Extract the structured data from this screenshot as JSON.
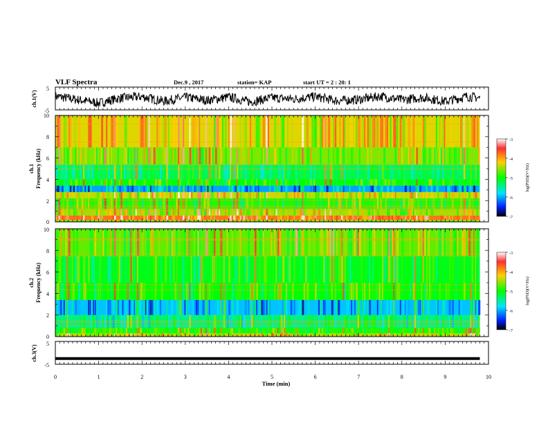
{
  "header": {
    "title": "VLF Spectra",
    "date": "Dec.9 , 2017",
    "station": "station= KAP",
    "start": "start UT =  2 : 20: 1"
  },
  "chart_data": [
    {
      "type": "line",
      "panel": "ch1-waveform",
      "ylabel": "ch.1(V)",
      "yticks": [
        "5",
        "-5"
      ],
      "ylim": [
        -5,
        5
      ],
      "xlim": [
        0,
        9.8
      ],
      "line_color": "#000000",
      "series": [
        {
          "x": [
            0,
            0.5,
            1,
            1.5,
            2,
            2.5,
            3,
            3.5,
            4,
            4.5,
            5,
            5.5,
            6,
            6.5,
            7,
            7.5,
            8,
            8.5,
            9,
            9.5,
            9.8
          ],
          "values": [
            1.0,
            -0.5,
            -2.0,
            0.2,
            0.8,
            -1.2,
            0.5,
            -0.8,
            0.6,
            -1.5,
            0.3,
            -0.2,
            0.8,
            -1.0,
            -0.5,
            1.0,
            -0.6,
            0.4,
            -1.3,
            0.9,
            0.2
          ]
        }
      ]
    },
    {
      "type": "heatmap",
      "panel": "ch1-spectrogram",
      "ylabel": "ch.1\nFrequency (kHz)",
      "ylabel_lines": [
        "ch.1",
        "Frequency (kHz)"
      ],
      "yticks": [
        "0",
        "2",
        "4",
        "6",
        "8",
        "10"
      ],
      "ylim": [
        0,
        10
      ],
      "xlim": [
        0,
        9.8
      ],
      "colorbar": {
        "label": "log(PSD)(V²/Hz)",
        "ticks": [
          "-3",
          "-4",
          "-5",
          "-6",
          "-7"
        ],
        "range": [
          -7,
          -3
        ]
      },
      "bands": [
        {
          "from": 0,
          "to": 0.2,
          "value": -4.6
        },
        {
          "from": 0.2,
          "to": 0.6,
          "value": -3.8
        },
        {
          "from": 0.6,
          "to": 1.2,
          "value": -4.5
        },
        {
          "from": 1.2,
          "to": 2.2,
          "value": -4.9
        },
        {
          "from": 2.2,
          "to": 2.8,
          "value": -4.4
        },
        {
          "from": 2.8,
          "to": 3.4,
          "value": -6.2
        },
        {
          "from": 3.4,
          "to": 4.0,
          "value": -5.0
        },
        {
          "from": 4.0,
          "to": 5.4,
          "value": -5.3
        },
        {
          "from": 5.4,
          "to": 7.0,
          "value": -4.6
        },
        {
          "from": 7.0,
          "to": 10,
          "value": -4.3
        }
      ]
    },
    {
      "type": "heatmap",
      "panel": "ch2-spectrogram",
      "ylabel": "ch.2\nFrequency (kHz)",
      "ylabel_lines": [
        "ch.2",
        "Frequency (kHz)"
      ],
      "yticks": [
        "0",
        "2",
        "4",
        "6",
        "8",
        "10"
      ],
      "ylim": [
        0,
        10
      ],
      "xlim": [
        0,
        9.8
      ],
      "colorbar": {
        "label": "log(PSD)(V²/Hz)",
        "ticks": [
          "-3",
          "-4",
          "-5",
          "-6",
          "-7"
        ],
        "range": [
          -7,
          -3
        ]
      },
      "bands": [
        {
          "from": 0,
          "to": 0.3,
          "value": -4.4
        },
        {
          "from": 0.3,
          "to": 0.8,
          "value": -4.9
        },
        {
          "from": 0.8,
          "to": 2.0,
          "value": -5.5
        },
        {
          "from": 2.0,
          "to": 3.4,
          "value": -6.1
        },
        {
          "from": 3.4,
          "to": 5.0,
          "value": -5.0
        },
        {
          "from": 5.0,
          "to": 7.5,
          "value": -5.1
        },
        {
          "from": 7.5,
          "to": 10,
          "value": -4.7
        }
      ]
    },
    {
      "type": "line",
      "panel": "ch3-waveform",
      "ylabel": "ch.3(V)",
      "yticks": [
        "5",
        "-5"
      ],
      "ylim": [
        -5,
        5
      ],
      "xlim": [
        0,
        9.8
      ],
      "xlabel": "Time (min)",
      "xticks": [
        "0",
        "1",
        "2",
        "3",
        "4",
        "5",
        "6",
        "7",
        "8",
        "9",
        "10"
      ],
      "xaxis_range": [
        0,
        10
      ],
      "line_color": "#000000",
      "series": [
        {
          "x": [
            0,
            9.8
          ],
          "values": [
            -2.5,
            -2.5
          ]
        }
      ]
    }
  ]
}
